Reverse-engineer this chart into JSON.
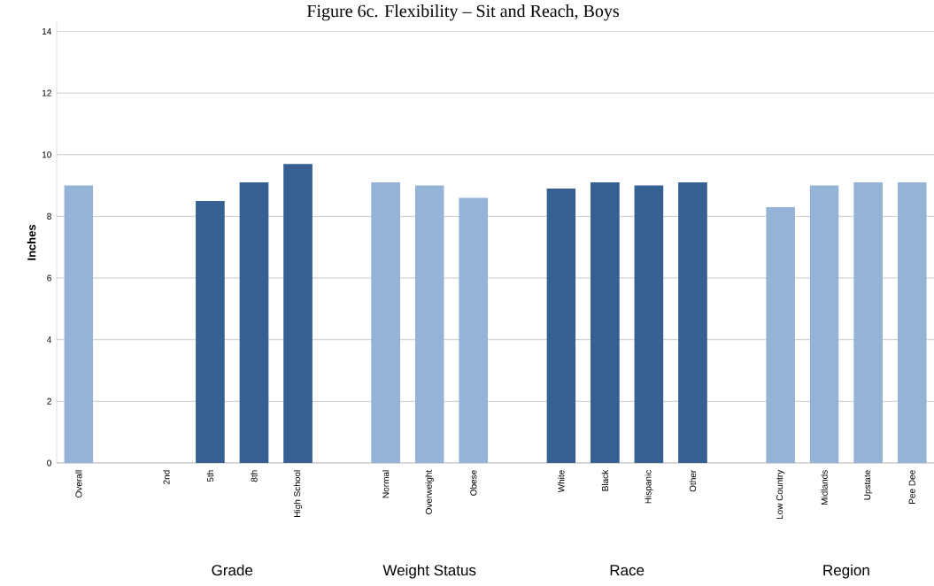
{
  "chart_data": {
    "type": "bar",
    "title": "Figure 6c. Flexibility – Sit and Reach, Boys",
    "ylabel": "Inches",
    "categories": [
      "Overall",
      null,
      "2nd",
      "5th",
      "8th",
      "High School",
      null,
      "Normal",
      "Overweight",
      "Obese",
      null,
      "White",
      "Black",
      "Hispanic",
      "Other",
      null,
      "Low Country",
      "Midlands",
      "Upstate",
      "Pee Dee"
    ],
    "values": [
      9.0,
      null,
      null,
      8.5,
      9.1,
      9.7,
      null,
      9.1,
      9.0,
      8.6,
      null,
      8.9,
      9.1,
      9.0,
      9.1,
      null,
      8.3,
      9.0,
      9.1,
      9.1
    ],
    "colors": [
      "#95b3d7",
      "#95b3d7",
      "#366092",
      "#366092",
      "#366092",
      "#366092",
      "#95b3d7",
      "#95b3d7",
      "#95b3d7",
      "#95b3d7",
      "#366092",
      "#366092",
      "#366092",
      "#366092",
      "#366092",
      "#95b3d7",
      "#95b3d7",
      "#95b3d7",
      "#95b3d7",
      "#95b3d7"
    ],
    "ylim": [
      0,
      14.3
    ],
    "yticks": [
      0,
      2,
      4,
      6,
      8,
      10,
      12,
      14
    ],
    "grid": "y",
    "annotations": [
      "Grade",
      "Weight Status",
      "Race",
      "Region"
    ]
  }
}
